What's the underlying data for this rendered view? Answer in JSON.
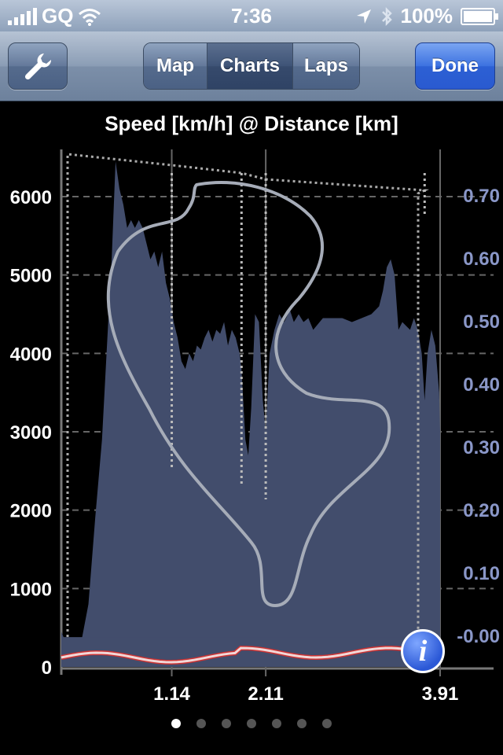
{
  "status": {
    "carrier": "GQ",
    "time": "7:36",
    "battery": "100%"
  },
  "nav": {
    "tabs": [
      "Map",
      "Charts",
      "Laps"
    ],
    "active_tab": 1,
    "done_label": "Done"
  },
  "chart_data": {
    "type": "area",
    "title": "Speed [km/h] @ Distance [km]",
    "left_ticks": [
      "0",
      "1000",
      "2000",
      "3000",
      "4000",
      "5000",
      "6000"
    ],
    "right_ticks": [
      "-0.00",
      "0.10",
      "0.20",
      "0.30",
      "0.40",
      "0.50",
      "0.60",
      "0.70"
    ],
    "x_ticks": [
      {
        "value": 1.14,
        "label": "1.14"
      },
      {
        "value": 2.11,
        "label": "2.11"
      },
      {
        "value": 3.91,
        "label": "3.91"
      }
    ],
    "xlim": [
      0,
      3.91
    ],
    "lap_markers": [
      1.14,
      1.86,
      2.11,
      3.75
    ],
    "speed_series": [
      [
        0,
        450
      ],
      [
        0.05,
        300
      ],
      [
        0.1,
        80
      ],
      [
        0.2,
        280
      ],
      [
        0.28,
        800
      ],
      [
        0.35,
        1900
      ],
      [
        0.42,
        2900
      ],
      [
        0.48,
        4300
      ],
      [
        0.52,
        5200
      ],
      [
        0.56,
        6450
      ],
      [
        0.6,
        6100
      ],
      [
        0.64,
        5900
      ],
      [
        0.68,
        5600
      ],
      [
        0.72,
        5700
      ],
      [
        0.76,
        5600
      ],
      [
        0.8,
        5700
      ],
      [
        0.84,
        5600
      ],
      [
        0.88,
        5400
      ],
      [
        0.92,
        5200
      ],
      [
        0.96,
        5300
      ],
      [
        1.0,
        5100
      ],
      [
        1.04,
        5300
      ],
      [
        1.08,
        4900
      ],
      [
        1.12,
        4700
      ],
      [
        1.16,
        4400
      ],
      [
        1.2,
        4200
      ],
      [
        1.24,
        3900
      ],
      [
        1.28,
        3800
      ],
      [
        1.32,
        4000
      ],
      [
        1.36,
        3900
      ],
      [
        1.4,
        4100
      ],
      [
        1.44,
        4050
      ],
      [
        1.48,
        4200
      ],
      [
        1.52,
        4300
      ],
      [
        1.56,
        4150
      ],
      [
        1.6,
        4300
      ],
      [
        1.64,
        4250
      ],
      [
        1.68,
        4400
      ],
      [
        1.72,
        4100
      ],
      [
        1.76,
        4300
      ],
      [
        1.8,
        4200
      ],
      [
        1.84,
        4000
      ],
      [
        1.86,
        3800
      ],
      [
        1.9,
        2900
      ],
      [
        1.93,
        2700
      ],
      [
        1.96,
        3300
      ],
      [
        2.0,
        4500
      ],
      [
        2.04,
        4400
      ],
      [
        2.08,
        3400
      ],
      [
        2.11,
        3000
      ],
      [
        2.15,
        4000
      ],
      [
        2.2,
        4300
      ],
      [
        2.25,
        4500
      ],
      [
        2.3,
        4400
      ],
      [
        2.36,
        4550
      ],
      [
        2.4,
        4400
      ],
      [
        2.45,
        4500
      ],
      [
        2.5,
        4400
      ],
      [
        2.55,
        4450
      ],
      [
        2.6,
        4300
      ],
      [
        2.7,
        4450
      ],
      [
        2.8,
        4450
      ],
      [
        2.9,
        4450
      ],
      [
        3.0,
        4400
      ],
      [
        3.1,
        4450
      ],
      [
        3.2,
        4500
      ],
      [
        3.28,
        4600
      ],
      [
        3.32,
        4800
      ],
      [
        3.36,
        5100
      ],
      [
        3.4,
        5200
      ],
      [
        3.44,
        5000
      ],
      [
        3.48,
        4300
      ],
      [
        3.52,
        4400
      ],
      [
        3.56,
        4350
      ],
      [
        3.6,
        4300
      ],
      [
        3.64,
        4450
      ],
      [
        3.68,
        4300
      ],
      [
        3.72,
        4000
      ],
      [
        3.75,
        3400
      ],
      [
        3.78,
        4000
      ],
      [
        3.82,
        4300
      ],
      [
        3.86,
        4100
      ],
      [
        3.9,
        3500
      ],
      [
        3.95,
        3000
      ],
      [
        4.0,
        2800
      ]
    ],
    "colors": {
      "area": "#424d6c",
      "left_axis_text": "#ffffff",
      "right_axis_text": "#8a97c8",
      "low_line": "#e8a3a3"
    }
  },
  "page_dots": 7,
  "active_dot": 0
}
